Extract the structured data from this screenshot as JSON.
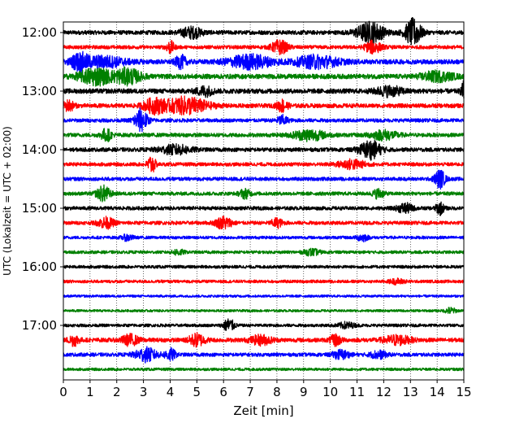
{
  "chart_data": {
    "type": "line",
    "title": "",
    "xlabel": "Zeit  [min]",
    "ylabel": "UTC (Lokalzeit = UTC + 02:00)",
    "xlim": [
      0,
      15
    ],
    "x_ticks": [
      "0",
      "1",
      "2",
      "3",
      "4",
      "5",
      "6",
      "7",
      "8",
      "9",
      "10",
      "11",
      "12",
      "13",
      "14",
      "15"
    ],
    "y_ticks": [
      "12:00",
      "13:00",
      "14:00",
      "15:00",
      "16:00",
      "17:00"
    ],
    "grid": "vertical dotted",
    "trace_interval_min": 15,
    "color_cycle": [
      "#000000",
      "#ff0000",
      "#0000ff",
      "#008000"
    ],
    "traces": [
      {
        "start": "12:00",
        "base_amp": 0.14,
        "bursts": [
          [
            4.8,
            0.35,
            0.4
          ],
          [
            11.5,
            0.7,
            0.5
          ],
          [
            13.1,
            0.9,
            0.3
          ]
        ]
      },
      {
        "start": "12:15",
        "base_amp": 0.12,
        "bursts": [
          [
            4.0,
            0.4,
            0.15
          ],
          [
            8.1,
            0.45,
            0.3
          ],
          [
            11.6,
            0.4,
            0.3
          ]
        ]
      },
      {
        "start": "12:30",
        "base_amp": 0.16,
        "bursts": [
          [
            0.6,
            0.5,
            0.3
          ],
          [
            1.5,
            0.35,
            0.8
          ],
          [
            4.4,
            0.4,
            0.2
          ],
          [
            7.0,
            0.45,
            0.8
          ],
          [
            9.5,
            0.4,
            0.8
          ]
        ]
      },
      {
        "start": "12:45",
        "base_amp": 0.16,
        "bursts": [
          [
            1.2,
            0.55,
            0.6
          ],
          [
            2.4,
            0.5,
            0.5
          ],
          [
            14.0,
            0.3,
            0.6
          ]
        ]
      },
      {
        "start": "13:00",
        "base_amp": 0.16,
        "bursts": [
          [
            5.3,
            0.3,
            0.3
          ],
          [
            12.2,
            0.3,
            0.5
          ],
          [
            15.0,
            0.6,
            0.1
          ]
        ]
      },
      {
        "start": "13:15",
        "base_amp": 0.14,
        "bursts": [
          [
            0.2,
            0.35,
            0.2
          ],
          [
            3.4,
            0.45,
            0.4
          ],
          [
            4.6,
            0.55,
            0.8
          ],
          [
            8.2,
            0.4,
            0.2
          ]
        ]
      },
      {
        "start": "13:30",
        "base_amp": 0.12,
        "bursts": [
          [
            2.9,
            0.75,
            0.25
          ],
          [
            8.2,
            0.3,
            0.2
          ]
        ]
      },
      {
        "start": "13:45",
        "base_amp": 0.13,
        "bursts": [
          [
            1.6,
            0.4,
            0.2
          ],
          [
            9.2,
            0.35,
            0.6
          ],
          [
            12.0,
            0.3,
            0.5
          ]
        ]
      },
      {
        "start": "14:00",
        "base_amp": 0.13,
        "bursts": [
          [
            4.2,
            0.3,
            0.6
          ],
          [
            11.5,
            0.6,
            0.4
          ]
        ]
      },
      {
        "start": "14:15",
        "base_amp": 0.12,
        "bursts": [
          [
            3.3,
            0.6,
            0.15
          ],
          [
            10.8,
            0.3,
            0.5
          ]
        ]
      },
      {
        "start": "14:30",
        "base_amp": 0.12,
        "bursts": [
          [
            14.1,
            0.6,
            0.2
          ]
        ]
      },
      {
        "start": "14:45",
        "base_amp": 0.12,
        "bursts": [
          [
            1.5,
            0.5,
            0.25
          ],
          [
            6.8,
            0.3,
            0.2
          ],
          [
            11.8,
            0.3,
            0.2
          ]
        ]
      },
      {
        "start": "15:00",
        "base_amp": 0.12,
        "bursts": [
          [
            12.8,
            0.3,
            0.3
          ],
          [
            14.1,
            0.4,
            0.15
          ]
        ]
      },
      {
        "start": "15:15",
        "base_amp": 0.12,
        "bursts": [
          [
            1.6,
            0.35,
            0.3
          ],
          [
            6.0,
            0.4,
            0.3
          ],
          [
            8.0,
            0.3,
            0.2
          ]
        ]
      },
      {
        "start": "15:30",
        "base_amp": 0.1,
        "bursts": [
          [
            2.4,
            0.2,
            0.2
          ],
          [
            11.2,
            0.25,
            0.2
          ]
        ]
      },
      {
        "start": "15:45",
        "base_amp": 0.1,
        "bursts": [
          [
            4.3,
            0.2,
            0.2
          ],
          [
            9.3,
            0.2,
            0.3
          ]
        ]
      },
      {
        "start": "16:00",
        "base_amp": 0.1,
        "bursts": []
      },
      {
        "start": "16:15",
        "base_amp": 0.1,
        "bursts": [
          [
            12.5,
            0.15,
            0.3
          ]
        ]
      },
      {
        "start": "16:30",
        "base_amp": 0.08,
        "bursts": []
      },
      {
        "start": "16:45",
        "base_amp": 0.08,
        "bursts": [
          [
            14.5,
            0.2,
            0.2
          ]
        ]
      },
      {
        "start": "17:00",
        "base_amp": 0.1,
        "bursts": [
          [
            6.2,
            0.45,
            0.2
          ],
          [
            10.6,
            0.2,
            0.3
          ]
        ]
      },
      {
        "start": "17:15",
        "base_amp": 0.14,
        "bursts": [
          [
            0.4,
            0.35,
            0.2
          ],
          [
            2.5,
            0.35,
            0.3
          ],
          [
            5.0,
            0.4,
            0.3
          ],
          [
            7.4,
            0.3,
            0.4
          ],
          [
            10.2,
            0.35,
            0.2
          ],
          [
            12.5,
            0.3,
            0.5
          ]
        ]
      },
      {
        "start": "17:30",
        "base_amp": 0.12,
        "bursts": [
          [
            3.1,
            0.45,
            0.4
          ],
          [
            4.0,
            0.4,
            0.2
          ],
          [
            10.4,
            0.3,
            0.3
          ],
          [
            11.8,
            0.25,
            0.3
          ]
        ]
      },
      {
        "start": "17:45",
        "base_amp": 0.09,
        "bursts": []
      }
    ]
  }
}
